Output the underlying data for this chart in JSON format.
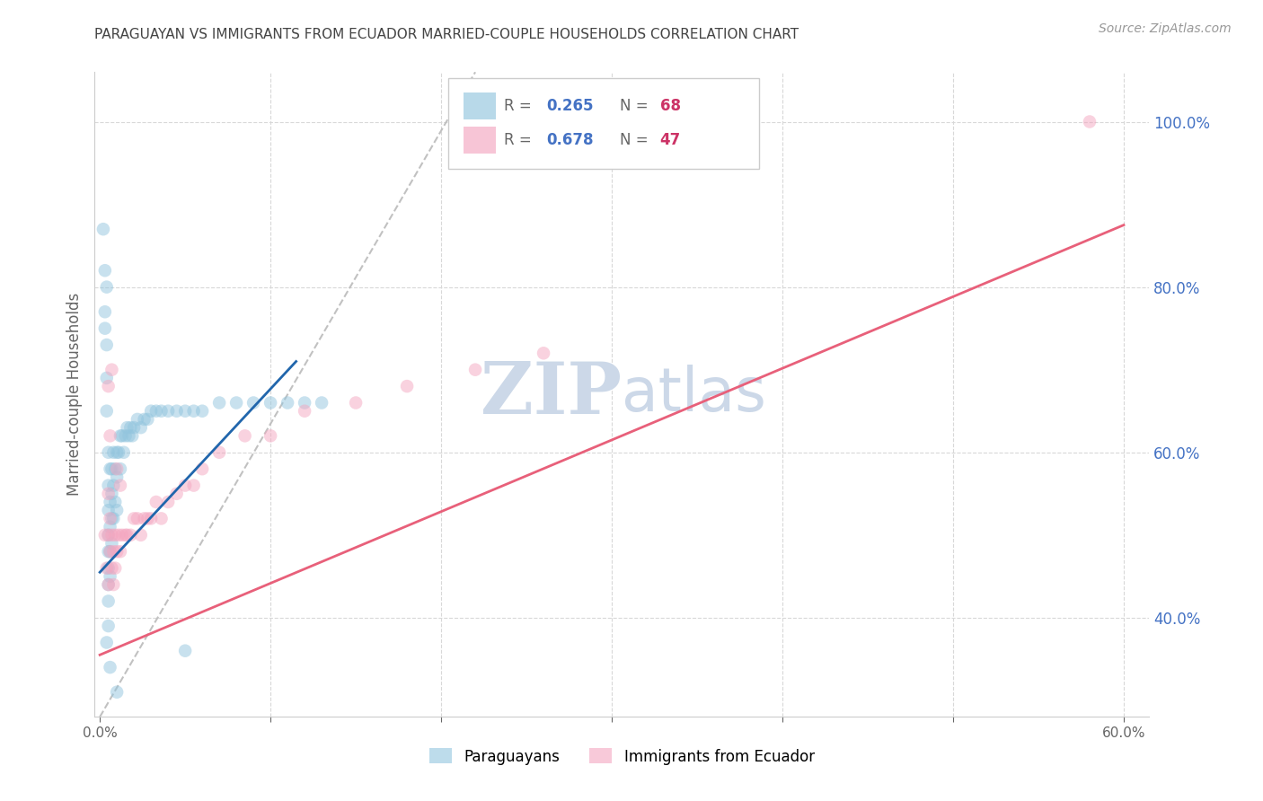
{
  "title": "PARAGUAYAN VS IMMIGRANTS FROM ECUADOR MARRIED-COUPLE HOUSEHOLDS CORRELATION CHART",
  "source": "Source: ZipAtlas.com",
  "ylabel": "Married-couple Households",
  "xlim": [
    -0.003,
    0.615
  ],
  "ylim": [
    0.28,
    1.06
  ],
  "right_yticks": [
    0.4,
    0.6,
    0.8,
    1.0
  ],
  "right_yticklabels": [
    "40.0%",
    "60.0%",
    "80.0%",
    "100.0%"
  ],
  "bottom_xticks": [
    0.0,
    0.1,
    0.2,
    0.3,
    0.4,
    0.5,
    0.6
  ],
  "bottom_xticklabels": [
    "0.0%",
    "",
    "",
    "",
    "",
    "",
    "60.0%"
  ],
  "blue_R": 0.265,
  "blue_N": 68,
  "pink_R": 0.678,
  "pink_N": 47,
  "blue_color": "#92c5de",
  "pink_color": "#f4a6c0",
  "blue_line_color": "#2166ac",
  "pink_line_color": "#e8607a",
  "ref_line_color": "#bbbbbb",
  "watermark_color": "#ccd8e8",
  "title_color": "#444444",
  "source_color": "#999999",
  "right_tick_color": "#4472c4",
  "grid_color": "#d8d8d8",
  "legend_R_color": "#4472c4",
  "legend_N_color": "#cc3366",
  "blue_scatter_x": [
    0.002,
    0.003,
    0.003,
    0.003,
    0.004,
    0.004,
    0.004,
    0.004,
    0.005,
    0.005,
    0.005,
    0.005,
    0.005,
    0.005,
    0.005,
    0.005,
    0.005,
    0.006,
    0.006,
    0.006,
    0.006,
    0.006,
    0.007,
    0.007,
    0.007,
    0.007,
    0.008,
    0.008,
    0.008,
    0.009,
    0.009,
    0.01,
    0.01,
    0.01,
    0.011,
    0.012,
    0.012,
    0.013,
    0.014,
    0.015,
    0.016,
    0.017,
    0.018,
    0.019,
    0.02,
    0.022,
    0.024,
    0.026,
    0.028,
    0.03,
    0.033,
    0.036,
    0.04,
    0.045,
    0.05,
    0.055,
    0.06,
    0.07,
    0.08,
    0.09,
    0.1,
    0.11,
    0.12,
    0.13,
    0.004,
    0.006,
    0.01,
    0.05
  ],
  "blue_scatter_y": [
    0.87,
    0.75,
    0.82,
    0.77,
    0.8,
    0.73,
    0.69,
    0.65,
    0.6,
    0.56,
    0.53,
    0.5,
    0.48,
    0.46,
    0.44,
    0.42,
    0.39,
    0.58,
    0.54,
    0.51,
    0.48,
    0.45,
    0.58,
    0.55,
    0.52,
    0.49,
    0.6,
    0.56,
    0.52,
    0.58,
    0.54,
    0.6,
    0.57,
    0.53,
    0.6,
    0.62,
    0.58,
    0.62,
    0.6,
    0.62,
    0.63,
    0.62,
    0.63,
    0.62,
    0.63,
    0.64,
    0.63,
    0.64,
    0.64,
    0.65,
    0.65,
    0.65,
    0.65,
    0.65,
    0.65,
    0.65,
    0.65,
    0.66,
    0.66,
    0.66,
    0.66,
    0.66,
    0.66,
    0.66,
    0.37,
    0.34,
    0.31,
    0.36
  ],
  "pink_scatter_x": [
    0.003,
    0.004,
    0.005,
    0.005,
    0.005,
    0.006,
    0.006,
    0.007,
    0.007,
    0.008,
    0.008,
    0.009,
    0.009,
    0.01,
    0.011,
    0.012,
    0.013,
    0.015,
    0.016,
    0.018,
    0.02,
    0.022,
    0.024,
    0.026,
    0.028,
    0.03,
    0.033,
    0.036,
    0.04,
    0.045,
    0.05,
    0.055,
    0.06,
    0.07,
    0.085,
    0.1,
    0.12,
    0.15,
    0.18,
    0.22,
    0.26,
    0.005,
    0.006,
    0.007,
    0.01,
    0.012,
    0.58
  ],
  "pink_scatter_y": [
    0.5,
    0.46,
    0.44,
    0.5,
    0.55,
    0.48,
    0.52,
    0.46,
    0.5,
    0.44,
    0.48,
    0.46,
    0.5,
    0.48,
    0.5,
    0.48,
    0.5,
    0.5,
    0.5,
    0.5,
    0.52,
    0.52,
    0.5,
    0.52,
    0.52,
    0.52,
    0.54,
    0.52,
    0.54,
    0.55,
    0.56,
    0.56,
    0.58,
    0.6,
    0.62,
    0.62,
    0.65,
    0.66,
    0.68,
    0.7,
    0.72,
    0.68,
    0.62,
    0.7,
    0.58,
    0.56,
    1.0
  ],
  "blue_line_x": [
    0.0,
    0.115
  ],
  "blue_line_y": [
    0.455,
    0.71
  ],
  "pink_line_x": [
    0.0,
    0.6
  ],
  "pink_line_y": [
    0.355,
    0.875
  ],
  "ref_line_x": [
    0.0,
    0.22
  ],
  "ref_line_y": [
    0.28,
    1.06
  ]
}
